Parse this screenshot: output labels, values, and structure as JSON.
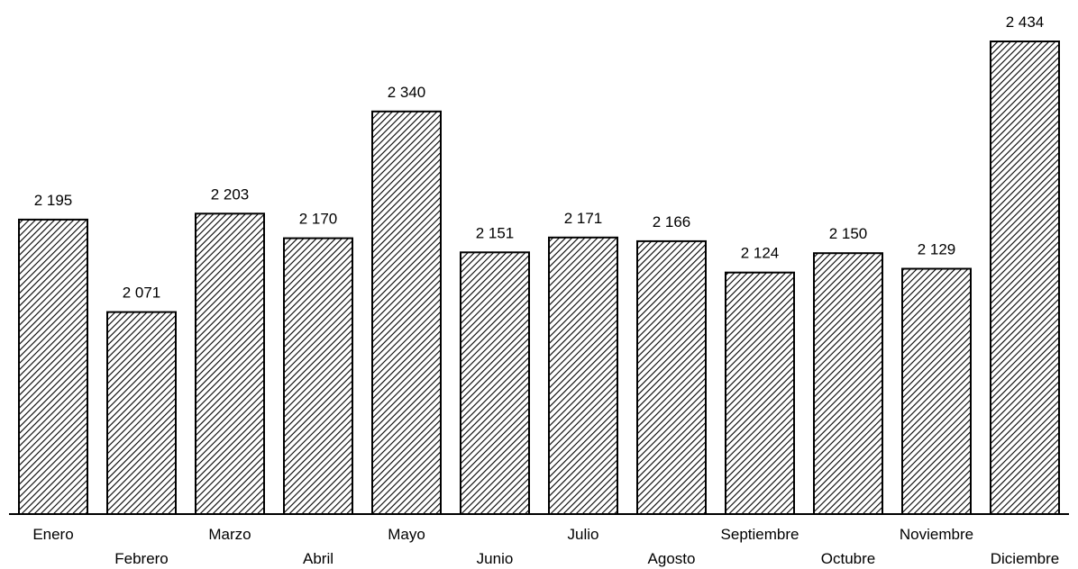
{
  "chart_data": {
    "type": "bar",
    "title": "",
    "xlabel": "",
    "ylabel": "",
    "ylim": [
      1800,
      2440
    ],
    "grid": false,
    "legend": "none",
    "categories": [
      "Enero",
      "Febrero",
      "Marzo",
      "Abril",
      "Mayo",
      "Junio",
      "Julio",
      "Agosto",
      "Septiembre",
      "Octubre",
      "Noviembre",
      "Diciembre"
    ],
    "values": [
      2195,
      2071,
      2203,
      2170,
      2340,
      2151,
      2171,
      2166,
      2124,
      2150,
      2129,
      2434
    ],
    "value_labels": [
      "2 195",
      "2 071",
      "2 203",
      "2 170",
      "2 340",
      "2 151",
      "2 171",
      "2 166",
      "2 124",
      "2 150",
      "2 129",
      "2 434"
    ],
    "bar_fill": "hatched",
    "bar_color": "#000000"
  }
}
